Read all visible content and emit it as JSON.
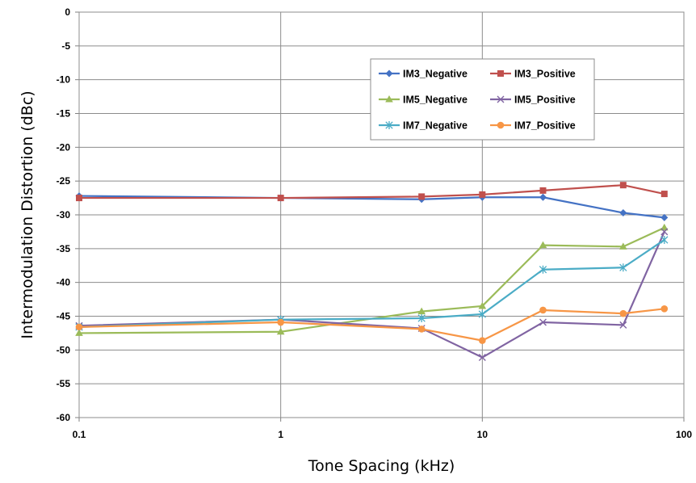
{
  "chart_data": {
    "type": "line",
    "title": "",
    "xlabel": "Tone Spacing (kHz)",
    "ylabel": "Intermodulation Distortion (dBc)",
    "x_scale": "log",
    "xlim": [
      0.1,
      100
    ],
    "ylim": [
      -60,
      0
    ],
    "x_ticks": [
      0.1,
      1,
      10,
      100
    ],
    "x_tick_labels": [
      "0.1",
      "1",
      "10",
      "100"
    ],
    "y_ticks": [
      0,
      -5,
      -10,
      -15,
      -20,
      -25,
      -30,
      -35,
      -40,
      -45,
      -50,
      -55,
      -60
    ],
    "y_tick_labels": [
      "0",
      "-5",
      "-10",
      "-15",
      "-20",
      "-25",
      "-30",
      "-35",
      "-40",
      "-45",
      "-50",
      "-55",
      "-60"
    ],
    "grid": true,
    "legend_position": "top-right",
    "x": [
      0.1,
      1,
      5,
      10,
      20,
      50,
      80
    ],
    "series": [
      {
        "name": "IM3_Negative",
        "color": "#4472C4",
        "marker": "diamond",
        "values": [
          -27.2,
          -27.5,
          -27.7,
          -27.4,
          -27.4,
          -29.7,
          -30.4
        ]
      },
      {
        "name": "IM3_Positive",
        "color": "#C0504D",
        "marker": "square",
        "values": [
          -27.5,
          -27.5,
          -27.3,
          -27.0,
          -26.4,
          -25.6,
          -26.9
        ]
      },
      {
        "name": "IM5_Negative",
        "color": "#9BBB59",
        "marker": "triangle",
        "values": [
          -47.5,
          -47.3,
          -44.3,
          -43.5,
          -34.5,
          -34.7,
          -31.9
        ]
      },
      {
        "name": "IM5_Positive",
        "color": "#8064A2",
        "marker": "x",
        "values": [
          -46.4,
          -45.5,
          -46.8,
          -51.1,
          -45.9,
          -46.3,
          -32.5
        ]
      },
      {
        "name": "IM7_Negative",
        "color": "#4BACC6",
        "marker": "star",
        "values": [
          -46.6,
          -45.5,
          -45.3,
          -44.7,
          -38.1,
          -37.8,
          -33.7
        ]
      },
      {
        "name": "IM7_Positive",
        "color": "#F79646",
        "marker": "circle",
        "values": [
          -46.6,
          -45.9,
          -46.9,
          -48.6,
          -44.1,
          -44.6,
          -43.9
        ]
      }
    ]
  }
}
